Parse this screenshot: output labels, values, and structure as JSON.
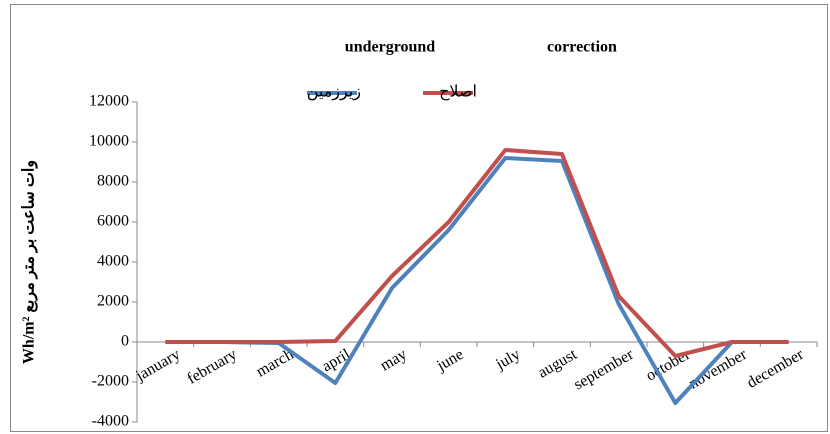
{
  "chart_data": {
    "type": "line",
    "title_left": "underground",
    "title_right": "correction",
    "ylabel": "Wh/m² وات ساعت بر متر مربع",
    "categories": [
      "january",
      "february",
      "march",
      "april",
      "may",
      "june",
      "july",
      "august",
      "september",
      "october",
      "november",
      "december"
    ],
    "series": [
      {
        "name": "زیرزمین",
        "color": "#4f81bd",
        "values": [
          0,
          0,
          -50,
          -2050,
          2700,
          5600,
          9200,
          9050,
          1900,
          -3050,
          0,
          0
        ]
      },
      {
        "name": "اصلاح",
        "color": "#c0504d",
        "values": [
          0,
          0,
          0,
          50,
          3300,
          6000,
          9600,
          9400,
          2300,
          -700,
          0,
          0
        ]
      }
    ],
    "ylim": [
      -4000,
      12000
    ],
    "yticks": [
      -4000,
      -2000,
      0,
      2000,
      4000,
      6000,
      8000,
      10000,
      12000
    ],
    "grid": false
  }
}
